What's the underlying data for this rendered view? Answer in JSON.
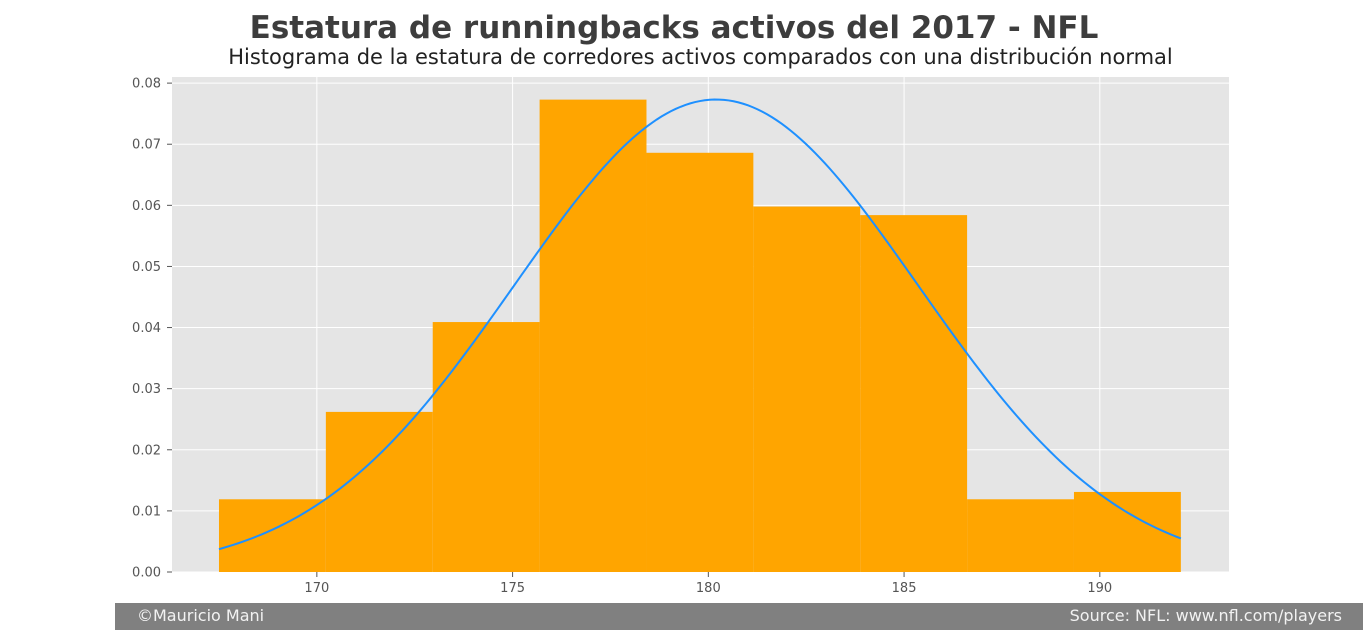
{
  "chart_data": {
    "type": "bar",
    "title": "Estatura de runningbacks activos del 2017 - NFL",
    "subtitle": "Histograma de la estatura de corredores activos comparados con una distribución normal",
    "xlabel": "",
    "ylabel": "",
    "xlim": [
      166.3,
      193.3
    ],
    "ylim": [
      0,
      0.081
    ],
    "grid": true,
    "x_ticks": [
      170,
      175,
      180,
      185,
      190
    ],
    "y_ticks": [
      0.0,
      0.01,
      0.02,
      0.03,
      0.04,
      0.05,
      0.06,
      0.07,
      0.08
    ],
    "histogram": {
      "bin_edges": [
        167.5,
        170.23,
        172.96,
        175.69,
        178.42,
        181.15,
        183.88,
        186.61,
        189.34,
        192.07
      ],
      "values": [
        0.0119,
        0.0262,
        0.0409,
        0.0773,
        0.0686,
        0.0598,
        0.0584,
        0.0119,
        0.0131
      ],
      "color": "#FFA500"
    },
    "normal_curve": {
      "mean": 180.2,
      "std": 5.16,
      "x_range": [
        167.5,
        192.07
      ],
      "color": "#1E90FF"
    }
  },
  "footer": {
    "left": "©Mauricio Mani",
    "right": "Source: NFL: www.nfl.com/players"
  }
}
